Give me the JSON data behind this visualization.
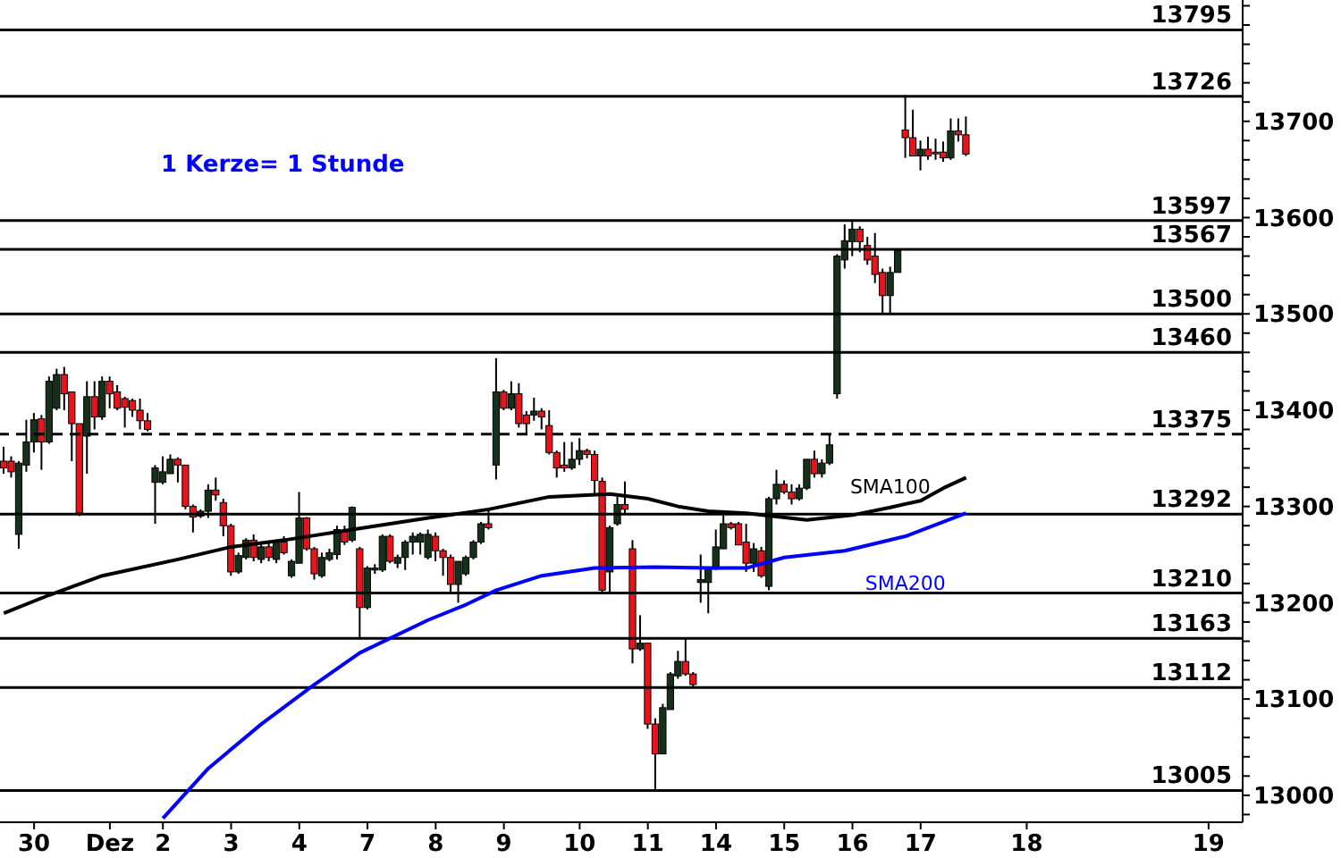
{
  "chart_data": {
    "type": "candlestick",
    "annotations": [
      "1 Kerze= 1 Stunde"
    ],
    "categories": [
      null,
      null,
      null,
      null,
      "30",
      null,
      null,
      null,
      null,
      null,
      null,
      null,
      null,
      null,
      "Dez",
      null,
      null,
      null,
      null,
      null,
      null,
      "2",
      null,
      null,
      null,
      null,
      null,
      null,
      null,
      null,
      "3",
      null,
      null,
      null,
      null,
      null,
      null,
      null,
      null,
      "4",
      null,
      null,
      null,
      null,
      null,
      null,
      null,
      null,
      "7",
      null,
      null,
      null,
      null,
      null,
      null,
      null,
      null,
      "8",
      null,
      null,
      null,
      null,
      null,
      null,
      null,
      null,
      "9",
      null,
      null,
      null,
      null,
      null,
      null,
      null,
      null,
      null,
      "10",
      null,
      null,
      null,
      null,
      null,
      null,
      null,
      null,
      "11",
      null,
      null,
      null,
      null,
      null,
      null,
      null,
      null,
      "14",
      null,
      null,
      null,
      null,
      null,
      null,
      null,
      null,
      "15",
      null,
      null,
      null,
      null,
      null,
      null,
      null,
      null,
      "16",
      null,
      null,
      null,
      null,
      null,
      null,
      null,
      null,
      "17",
      null,
      null,
      null,
      null,
      null,
      null,
      null,
      null,
      null,
      null,
      null,
      null,
      null,
      "18",
      null,
      null,
      null,
      null,
      null,
      null,
      null,
      null,
      null,
      null,
      null,
      null,
      null,
      null,
      null,
      null,
      null,
      null,
      null,
      null,
      null,
      null,
      null,
      "19",
      null,
      null,
      null,
      null
    ],
    "ohlc": [
      [
        13347,
        13362,
        13334,
        13340
      ],
      [
        13347,
        13352,
        13330,
        13336
      ],
      [
        13271,
        13347,
        13256,
        13345
      ],
      [
        13343,
        13390,
        13336,
        13367
      ],
      [
        13367,
        13397,
        13356,
        13390
      ],
      [
        13391,
        13395,
        13338,
        13367
      ],
      [
        13367,
        13435,
        13365,
        13430
      ],
      [
        13402,
        13443,
        13400,
        13437
      ],
      [
        13437,
        13445,
        13400,
        13417
      ],
      [
        13419,
        13419,
        13347,
        13386
      ],
      [
        13386,
        13386,
        13290,
        13293
      ],
      [
        13373,
        13430,
        13334,
        13414
      ],
      [
        13414,
        13430,
        13380,
        13393
      ],
      [
        13393,
        13435,
        13390,
        13430
      ],
      [
        13430,
        13435,
        13402,
        13417
      ],
      [
        13419,
        13426,
        13400,
        13402
      ],
      [
        13412,
        13414,
        13382,
        13403
      ],
      [
        13410,
        13412,
        13393,
        13400
      ],
      [
        13400,
        13412,
        13380,
        13389
      ],
      [
        13389,
        13397,
        13378,
        13380
      ],
      [
        13325,
        13343,
        13282,
        13340
      ],
      [
        13325,
        13352,
        13323,
        13336
      ],
      [
        13334,
        13354,
        13334,
        13349
      ],
      [
        13349,
        13351,
        13325,
        13343
      ],
      [
        13343,
        13343,
        13297,
        13300
      ],
      [
        13300,
        13302,
        13273,
        13289
      ],
      [
        13290,
        13297,
        13288,
        13295
      ],
      [
        13295,
        13323,
        13288,
        13317
      ],
      [
        13317,
        13330,
        13306,
        13312
      ],
      [
        13304,
        13308,
        13269,
        13280
      ],
      [
        13280,
        13282,
        13228,
        13232
      ],
      [
        13232,
        13252,
        13230,
        13249
      ],
      [
        13247,
        13267,
        13245,
        13265
      ],
      [
        13265,
        13271,
        13243,
        13247
      ],
      [
        13245,
        13263,
        13241,
        13258
      ],
      [
        13258,
        13262,
        13243,
        13247
      ],
      [
        13245,
        13265,
        13241,
        13263
      ],
      [
        13263,
        13269,
        13250,
        13252
      ],
      [
        13228,
        13245,
        13226,
        13243
      ],
      [
        13241,
        13315,
        13241,
        13288
      ],
      [
        13288,
        13289,
        13254,
        13256
      ],
      [
        13256,
        13258,
        13224,
        13230
      ],
      [
        13228,
        13252,
        13226,
        13247
      ],
      [
        13245,
        13256,
        13243,
        13252
      ],
      [
        13250,
        13280,
        13245,
        13276
      ],
      [
        13274,
        13280,
        13260,
        13263
      ],
      [
        13265,
        13300,
        13263,
        13299
      ],
      [
        13256,
        13258,
        13163,
        13195
      ],
      [
        13195,
        13238,
        13193,
        13236
      ],
      [
        13234,
        13240,
        13230,
        13236
      ],
      [
        13234,
        13271,
        13232,
        13269
      ],
      [
        13269,
        13271,
        13241,
        13243
      ],
      [
        13241,
        13250,
        13236,
        13247
      ],
      [
        13247,
        13265,
        13234,
        13263
      ],
      [
        13263,
        13273,
        13250,
        13269
      ],
      [
        13263,
        13273,
        13250,
        13271
      ],
      [
        13247,
        13276,
        13245,
        13271
      ],
      [
        13269,
        13273,
        13243,
        13254
      ],
      [
        13254,
        13256,
        13228,
        13247
      ],
      [
        13247,
        13250,
        13210,
        13219
      ],
      [
        13219,
        13243,
        13200,
        13243
      ],
      [
        13230,
        13249,
        13228,
        13247
      ],
      [
        13247,
        13265,
        13245,
        13263
      ],
      [
        13263,
        13284,
        13261,
        13282
      ],
      [
        13282,
        13297,
        13276,
        13278
      ],
      [
        13343,
        13454,
        13328,
        13419
      ],
      [
        13419,
        13421,
        13400,
        13402
      ],
      [
        13402,
        13430,
        13400,
        13417
      ],
      [
        13417,
        13428,
        13382,
        13386
      ],
      [
        13395,
        13399,
        13375,
        13386
      ],
      [
        13395,
        13413,
        13389,
        13399
      ],
      [
        13399,
        13402,
        13380,
        13393
      ],
      [
        13384,
        13400,
        13354,
        13356
      ],
      [
        13356,
        13358,
        13330,
        13340
      ],
      [
        13343,
        13367,
        13336,
        13340
      ],
      [
        13340,
        13367,
        13338,
        13349
      ],
      [
        13349,
        13371,
        13343,
        13358
      ],
      [
        13358,
        13360,
        13350,
        13354
      ],
      [
        13354,
        13358,
        13313,
        13327
      ],
      [
        13326,
        13330,
        13210,
        13213
      ],
      [
        13232,
        13280,
        13210,
        13278
      ],
      [
        13282,
        13310,
        13280,
        13302
      ],
      [
        13302,
        13326,
        13293,
        13297
      ],
      [
        13256,
        13265,
        13137,
        13152
      ],
      [
        13152,
        13187,
        13150,
        13158
      ],
      [
        13158,
        13158,
        13069,
        13074
      ],
      [
        13074,
        13080,
        13006,
        13043
      ],
      [
        13043,
        13095,
        13043,
        13091
      ],
      [
        13089,
        13128,
        13089,
        13126
      ],
      [
        13124,
        13150,
        13121,
        13139
      ],
      [
        13139,
        13163,
        13124,
        13126
      ],
      [
        13126,
        13128,
        13111,
        13115
      ],
      [
        13221,
        13250,
        13200,
        13224
      ],
      [
        13221,
        13236,
        13189,
        13235
      ],
      [
        13235,
        13276,
        13234,
        13258
      ],
      [
        13256,
        13291,
        13256,
        13282
      ],
      [
        13282,
        13284,
        13276,
        13278
      ],
      [
        13282,
        13284,
        13260,
        13260
      ],
      [
        13263,
        13282,
        13232,
        13241
      ],
      [
        13241,
        13262,
        13232,
        13256
      ],
      [
        13254,
        13258,
        13226,
        13228
      ],
      [
        13217,
        13310,
        13213,
        13308
      ],
      [
        13308,
        13338,
        13302,
        13323
      ],
      [
        13323,
        13327,
        13313,
        13315
      ],
      [
        13315,
        13323,
        13302,
        13308
      ],
      [
        13308,
        13323,
        13306,
        13319
      ],
      [
        13319,
        13349,
        13317,
        13349
      ],
      [
        13349,
        13358,
        13330,
        13334
      ],
      [
        13334,
        13349,
        13330,
        13345
      ],
      [
        13345,
        13375,
        13343,
        13364
      ],
      [
        13417,
        13562,
        13412,
        13560
      ],
      [
        13556,
        13593,
        13547,
        13576
      ],
      [
        13575,
        13597,
        13560,
        13588
      ],
      [
        13588,
        13591,
        13564,
        13575
      ],
      [
        13571,
        13580,
        13551,
        13556
      ],
      [
        13560,
        13584,
        13532,
        13541
      ],
      [
        13543,
        13547,
        13500,
        13519
      ],
      [
        13519,
        13549,
        13500,
        13543
      ],
      [
        13543,
        13567,
        13543,
        13566
      ],
      [
        13691,
        13727,
        13662,
        13683
      ],
      [
        13683,
        13712,
        13664,
        13664
      ],
      [
        13664,
        13680,
        13649,
        13671
      ],
      [
        13671,
        13684,
        13660,
        13664
      ],
      [
        13668,
        13682,
        13660,
        13667
      ],
      [
        13668,
        13679,
        13658,
        13662
      ],
      [
        13662,
        13703,
        13660,
        13690
      ],
      [
        13690,
        13703,
        13679,
        13686
      ],
      [
        13686,
        13705,
        13664,
        13666
      ],
      null,
      null,
      null,
      null,
      null,
      null,
      null,
      null,
      null,
      null,
      null,
      null,
      null,
      null,
      null,
      null,
      null,
      null,
      null,
      null,
      null,
      null,
      null,
      null,
      null,
      null,
      null,
      null,
      null,
      null,
      null,
      null,
      null,
      null,
      null,
      null
    ],
    "series": [
      {
        "name": "SMA100",
        "type": "line",
        "color": "#000000",
        "values": [
          13189,
          null,
          null,
          null,
          null,
          null,
          13208,
          null,
          null,
          null,
          null,
          null,
          null,
          13228,
          null,
          null,
          null,
          null,
          null,
          null,
          null,
          null,
          null,
          13245,
          null,
          null,
          null,
          null,
          null,
          null,
          13258,
          null,
          null,
          null,
          null,
          null,
          null,
          13265,
          null,
          null,
          null,
          null,
          null,
          null,
          null,
          null,
          13276,
          null,
          null,
          null,
          null,
          null,
          null,
          null,
          null,
          null,
          13288,
          null,
          null,
          null,
          null,
          null,
          null,
          null,
          13297,
          null,
          null,
          null,
          null,
          null,
          null,
          null,
          13310,
          null,
          null,
          null,
          null,
          null,
          null,
          null,
          13313,
          null,
          null,
          null,
          null,
          13308,
          null,
          null,
          null,
          13300,
          null,
          null,
          null,
          13295,
          null,
          null,
          null,
          null,
          13293,
          null,
          null,
          null,
          null,
          null,
          null,
          null,
          13286,
          null,
          null,
          null,
          null,
          null,
          13291,
          null,
          null,
          null,
          null,
          13299,
          null,
          null,
          null,
          13306,
          null,
          null,
          13319,
          null,
          null,
          13330,
          null,
          null,
          null,
          null,
          null,
          null,
          null,
          null,
          null,
          null,
          null,
          null,
          null,
          null,
          null,
          null,
          null,
          null,
          null,
          null,
          null,
          null,
          null,
          null,
          null,
          null,
          null,
          null,
          null,
          null,
          null,
          null,
          null,
          null,
          null,
          null
        ]
      },
      {
        "name": "SMA200",
        "type": "line",
        "color": "#0000ff",
        "values": [
          null,
          null,
          null,
          null,
          null,
          null,
          null,
          null,
          null,
          null,
          null,
          null,
          null,
          null,
          null,
          null,
          null,
          null,
          null,
          null,
          null,
          12976,
          null,
          null,
          null,
          null,
          null,
          13028,
          null,
          null,
          null,
          null,
          null,
          null,
          13074,
          null,
          null,
          null,
          null,
          null,
          null,
          13115,
          null,
          null,
          null,
          null,
          null,
          13148,
          null,
          null,
          null,
          null,
          null,
          null,
          null,
          null,
          13182,
          null,
          null,
          null,
          null,
          13198,
          null,
          null,
          null,
          13213,
          null,
          null,
          null,
          null,
          null,
          13228,
          null,
          null,
          null,
          null,
          null,
          null,
          13236,
          null,
          null,
          null,
          null,
          null,
          null,
          null,
          13237,
          null,
          null,
          null,
          null,
          null,
          null,
          13236,
          null,
          null,
          null,
          null,
          13236,
          null,
          null,
          null,
          null,
          13247,
          null,
          null,
          null,
          null,
          null,
          null,
          null,
          13254,
          null,
          null,
          null,
          null,
          null,
          null,
          null,
          13269,
          null,
          null,
          null,
          null,
          null,
          null,
          null,
          13293,
          null,
          null,
          null,
          null,
          null,
          null,
          null,
          null,
          null,
          null,
          null,
          null,
          null,
          null,
          null,
          null,
          null,
          null,
          null,
          null,
          null,
          null,
          null,
          null,
          null,
          null,
          null,
          null,
          null,
          null,
          null,
          null,
          null,
          null,
          null,
          null
        ]
      }
    ],
    "ylim": [
      12972,
      13826
    ],
    "yticks": [
      {
        "value": 12980,
        "label": null
      },
      13000,
      {
        "value": 13020,
        "label": null
      },
      {
        "value": 13040,
        "label": null
      },
      {
        "value": 13060,
        "label": null
      },
      {
        "value": 13080,
        "label": null
      },
      13100,
      {
        "value": 13120,
        "label": null
      },
      {
        "value": 13140,
        "label": null
      },
      {
        "value": 13160,
        "label": null
      },
      {
        "value": 13180,
        "label": null
      },
      13200,
      {
        "value": 13220,
        "label": null
      },
      {
        "value": 13240,
        "label": null
      },
      {
        "value": 13260,
        "label": null
      },
      {
        "value": 13280,
        "label": null
      },
      13300,
      {
        "value": 13320,
        "label": null
      },
      {
        "value": 13340,
        "label": null
      },
      {
        "value": 13360,
        "label": null
      },
      {
        "value": 13380,
        "label": null
      },
      13400,
      {
        "value": 13420,
        "label": null
      },
      {
        "value": 13440,
        "label": null
      },
      {
        "value": 13460,
        "label": null
      },
      {
        "value": 13480,
        "label": null
      },
      13500,
      {
        "value": 13520,
        "label": null
      },
      {
        "value": 13540,
        "label": null
      },
      {
        "value": 13560,
        "label": null
      },
      {
        "value": 13580,
        "label": null
      },
      13600,
      {
        "value": 13620,
        "label": null
      },
      {
        "value": 13640,
        "label": null
      },
      {
        "value": 13660,
        "label": null
      },
      {
        "value": 13680,
        "label": null
      },
      13700,
      {
        "value": 13720,
        "label": null
      },
      {
        "value": 13740,
        "label": null
      },
      {
        "value": 13760,
        "label": null
      },
      {
        "value": 13780,
        "label": null
      },
      {
        "value": 13800,
        "label": null
      },
      {
        "value": 13820,
        "label": null
      }
    ],
    "ref_lines": [
      {
        "axis": "y",
        "value": 13795,
        "label": "13795",
        "color": "#000000"
      },
      {
        "axis": "y",
        "value": 13726,
        "label": "13726",
        "color": "#000000"
      },
      {
        "axis": "y",
        "value": 13597,
        "label": "13597",
        "color": "#000000"
      },
      {
        "axis": "y",
        "value": 13567,
        "label": "13567",
        "color": "#000000"
      },
      {
        "axis": "y",
        "value": 13500,
        "label": "13500",
        "color": "#000000"
      },
      {
        "axis": "y",
        "value": 13460,
        "label": "13460",
        "color": "#000000"
      },
      {
        "axis": "y",
        "value": 13375,
        "label": "13375",
        "color": "#000000",
        "line_style": "dashed"
      },
      {
        "axis": "y",
        "value": 13292,
        "label": "13292",
        "color": "#000000"
      },
      {
        "axis": "y",
        "value": 13210,
        "label": "13210",
        "color": "#000000"
      },
      {
        "axis": "y",
        "value": 13163,
        "label": "13163",
        "color": "#000000"
      },
      {
        "axis": "y",
        "value": 13112,
        "label": "13112",
        "color": "#000000"
      },
      {
        "axis": "y",
        "value": 13005,
        "label": "13005",
        "color": "#000000"
      }
    ],
    "grid": false,
    "legend": false,
    "marker": "none"
  }
}
